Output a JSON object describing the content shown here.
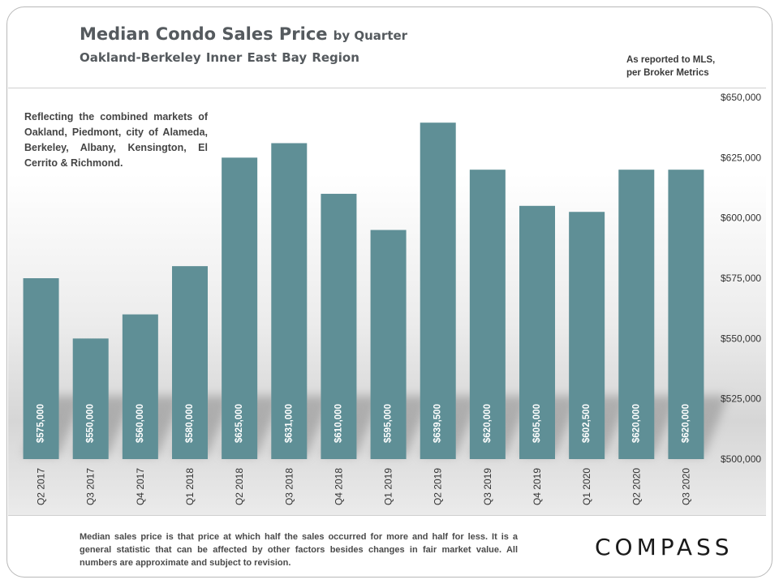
{
  "header": {
    "title": "Median Condo Sales Price",
    "title_suffix": "by Quarter",
    "subtitle": "Oakland-Berkeley  Inner East Bay Region",
    "source_line1": "As reported to MLS,",
    "source_line2": "per Broker Metrics"
  },
  "note": "Reflecting the combined markets of Oakland, Piedmont, city of Alameda, Berkeley, Albany, Kensington, El Cerrito & Richmond.",
  "footnote": "Median sales price is that price at which half the sales occurred for more and half for less. It is a general statistic that can be affected by other factors besides changes in fair market value. All numbers are approximate and subject to revision.",
  "logo": "COMPASS",
  "colors": {
    "bar": "#5f8f96",
    "bar_label": "#ffffff",
    "axis_text": "#333333"
  },
  "chart_data": {
    "type": "bar",
    "categories": [
      "Q2 2017",
      "Q3 2017",
      "Q4 2017",
      "Q1 2018",
      "Q2 2018",
      "Q3 2018",
      "Q4 2018",
      "Q1 2019",
      "Q2 2019",
      "Q3 2019",
      "Q4 2019",
      "Q1 2020",
      "Q2 2020",
      "Q3 2020"
    ],
    "values": [
      575000,
      550000,
      560000,
      580000,
      625000,
      631000,
      610000,
      595000,
      639500,
      620000,
      605000,
      602500,
      620000,
      620000
    ],
    "data_labels": [
      "$575,000",
      "$550,000",
      "$560,000",
      "$580,000",
      "$625,000",
      "$631,000",
      "$610,000",
      "$595,000",
      "$639,500",
      "$620,000",
      "$605,000",
      "$602,500",
      "$620,000",
      "$620,000"
    ],
    "ylim": [
      500000,
      650000
    ],
    "y_ticks": [
      500000,
      525000,
      550000,
      575000,
      600000,
      625000,
      650000
    ],
    "y_tick_labels": [
      "$500,000",
      "$525,000",
      "$550,000",
      "$575,000",
      "$600,000",
      "$625,000",
      "$650,000"
    ],
    "y_axis_position": "right",
    "grid": false,
    "legend": "none"
  }
}
